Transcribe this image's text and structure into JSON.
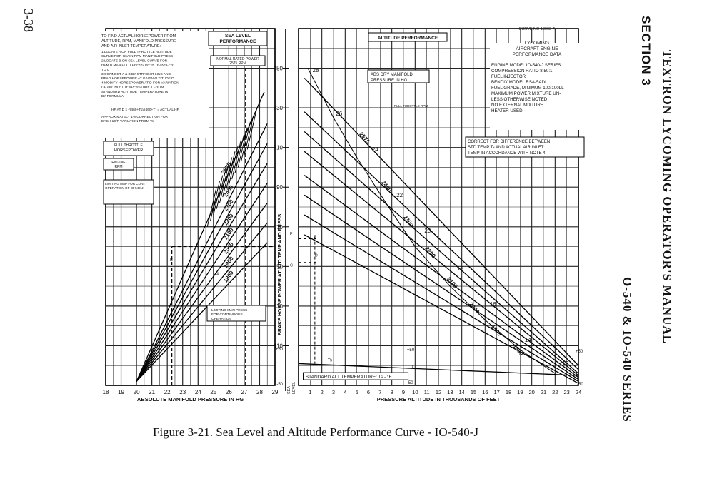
{
  "page": {
    "page_number": "3-38",
    "section": "SECTION 3",
    "manual_title": "TEXTRON LYCOMING OPERATOR'S MANUAL",
    "series_title": "O-540 & IO-540 SERIES",
    "caption": "Figure 3-21. Sea Level and Altitude Performance Curve - IO-540-J"
  },
  "chart_data": [
    {
      "type": "line",
      "title": "SEA LEVEL PERFORMANCE",
      "xlabel": "ABSOLUTE MANIFOLD PRESSURE IN HG",
      "ylabel": "BRAKE HORSE POWER AT STD TEMP AND PRESS",
      "xlim": [
        18,
        29
      ],
      "ylim": [
        90,
        270
      ],
      "x_ticks": [
        "18",
        "19",
        "20",
        "21",
        "22",
        "23",
        "24",
        "25",
        "26",
        "27",
        "28",
        "29"
      ],
      "y_ticks": [
        110,
        130,
        150,
        170,
        190,
        210,
        230,
        250
      ],
      "grid": true,
      "series": [
        {
          "name": "2575",
          "x": [
            20.0,
            28.3
          ],
          "y": [
            92,
            238
          ]
        },
        {
          "name": "2400",
          "x": [
            20.0,
            28.5
          ],
          "y": [
            92,
            222
          ]
        },
        {
          "name": "2300",
          "x": [
            20.0,
            28.5
          ],
          "y": [
            92,
            212
          ]
        },
        {
          "name": "2200",
          "x": [
            20.0,
            28.5
          ],
          "y": [
            92,
            202
          ]
        },
        {
          "name": "2100",
          "x": [
            20.0,
            28.5
          ],
          "y": [
            92,
            192
          ]
        },
        {
          "name": "2000",
          "x": [
            20.0,
            28.5
          ],
          "y": [
            92,
            182
          ]
        },
        {
          "name": "1900",
          "x": [
            20.0,
            28.5
          ],
          "y": [
            92,
            172
          ]
        },
        {
          "name": "1800",
          "x": [
            20.0,
            28.5
          ],
          "y": [
            92,
            162
          ]
        }
      ],
      "annotations": [
        "TO FIND ACTUAL HORSEPOWER FROM ALTITUDE, RPM, MANIFOLD PRESSURE AND AIR INLET TEMPERATURE:",
        "1 LOCATE A ON FULL THROTTLE ALTITUDE CURVE FOR GIVEN RPM MANIFOLD PRESS",
        "2 LOCATE B ON SEA LEVEL CURVE FOR RPM B MANIFOLD PRESSURE B TRANSFER TO C",
        "3 CONNECT A & B BY STRAIGHT LINE AND READ HORSEPOWER AT GIVEN ALTITUDE D",
        "4 MODIFY HORSEPOWER AT D FOR VARIATION OF AIR INLET TEMPERATURE T FROM STANDARD ALTITUDE TEMPERATURE Ts BY FORMULA",
        "HP AT D x √(460+Ts)/(460+T) = ACTUAL HP",
        "APPROXIMATELY 1% CORRECTION FOR EACH 10°F VARIATION FROM Ts",
        "NORMAL RATED POWER 2575 RPM",
        "FULL THROTTLE HORSEPOWER",
        "ENGINE RPM",
        "LIMITING MAP FOR CONT OPERATION OF IO-540-J",
        "LIMITING MAN PRESS FOR CONTINUOUS OPERATION",
        "B",
        "A"
      ]
    },
    {
      "type": "line",
      "title": "ALTITUDE PERFORMANCE",
      "xlabel": "PRESSURE ALTITUDE IN THOUSANDS OF FEET",
      "xlim": [
        0,
        24
      ],
      "x_ticks": [
        "SEA LEVEL",
        "1",
        "2",
        "3",
        "4",
        "5",
        "6",
        "7",
        "8",
        "9",
        "10",
        "11",
        "12",
        "13",
        "14",
        "15",
        "16",
        "17",
        "18",
        "19",
        "20",
        "21",
        "22",
        "23",
        "24"
      ],
      "ylim": [
        90,
        270
      ],
      "grid": true,
      "manifold_pressure_labels": [
        "28",
        "26",
        "24",
        "22",
        "20",
        "18",
        "16",
        "14",
        "12"
      ],
      "series": [
        {
          "name": "2575",
          "x": [
            0.5,
            24
          ],
          "y": [
            245,
            100
          ]
        },
        {
          "name": "2400",
          "x": [
            0.5,
            24
          ],
          "y": [
            228,
            98
          ]
        },
        {
          "name": "2300",
          "x": [
            0.5,
            24
          ],
          "y": [
            218,
            96
          ]
        },
        {
          "name": "2200",
          "x": [
            0.5,
            24
          ],
          "y": [
            208,
            95
          ]
        },
        {
          "name": "2100",
          "x": [
            0.5,
            24
          ],
          "y": [
            196,
            94
          ]
        },
        {
          "name": "2000",
          "x": [
            0.5,
            24
          ],
          "y": [
            186,
            93
          ]
        },
        {
          "name": "1900",
          "x": [
            0.5,
            24
          ],
          "y": [
            176,
            92
          ]
        },
        {
          "name": "1800",
          "x": [
            0.5,
            24
          ],
          "y": [
            166,
            91
          ]
        }
      ],
      "temperature_scale": {
        "label": "STANDARD ALT TEMPERATURE: Ts - °F",
        "ticks": [
          "+50",
          "0",
          "-50"
        ]
      },
      "annotations": [
        "LYCOMING AIRCRAFT ENGINE PERFORMANCE DATA",
        "ENGINE MODEL IO-540-J SERIES",
        "COMPRESSION RATIO 8.50:1",
        "FUEL INJECTOR BENDIX MODEL RSA-5ADI",
        "FUEL GRADE, MINIMUM 100/100LL",
        "MAXIMUM POWER MIXTURE UNLESS OTHERWISE NOTED",
        "NO EXTERNAL MIXTURE HEATER USED",
        "CURVE NO 13003-A",
        "ABS DRY MANIFOLD PRESSURE IN HG",
        "FULL THROTTLE RPM",
        "CORRECT FOR DIFFERENCE BETWEEN STD TEMP Ts AND ACTUAL AIR INLET TEMP IN ACCORDANCE WITH NOTE 4",
        "Ts",
        "F",
        "E",
        "D",
        "C"
      ]
    }
  ]
}
